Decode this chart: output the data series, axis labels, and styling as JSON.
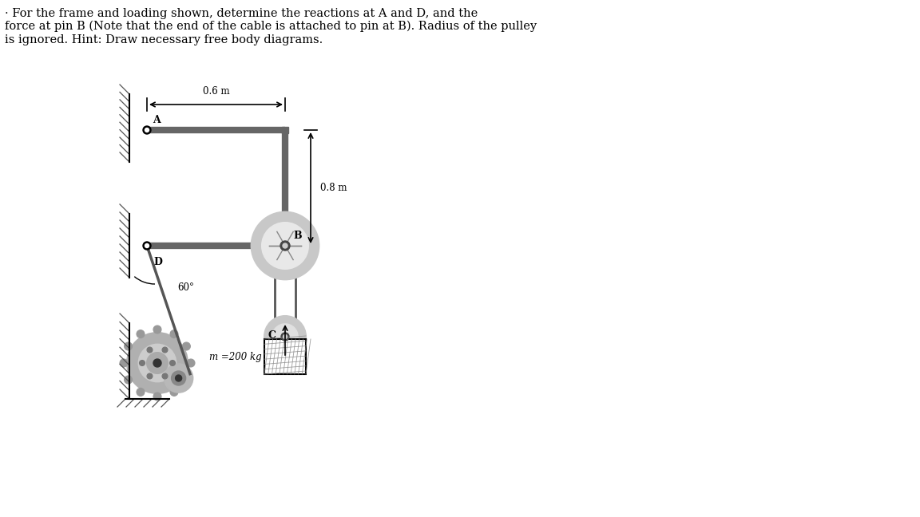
{
  "title_text": "· For the frame and loading shown, determine the reactions at A and D, and the\nforce at pin B (Note that the end of the cable is attached to pin at B). Radius of the pulley\nis ignored. Hint: Draw necessary free body diagrams.",
  "title_fontsize": 10.5,
  "bg_color": "#ffffff",
  "fig_width": 11.52,
  "fig_height": 6.48,
  "dim_06_label": "0.6 m",
  "dim_08_label": "0.8 m",
  "angle_label": "60°",
  "mass_label": "m =200 kg"
}
